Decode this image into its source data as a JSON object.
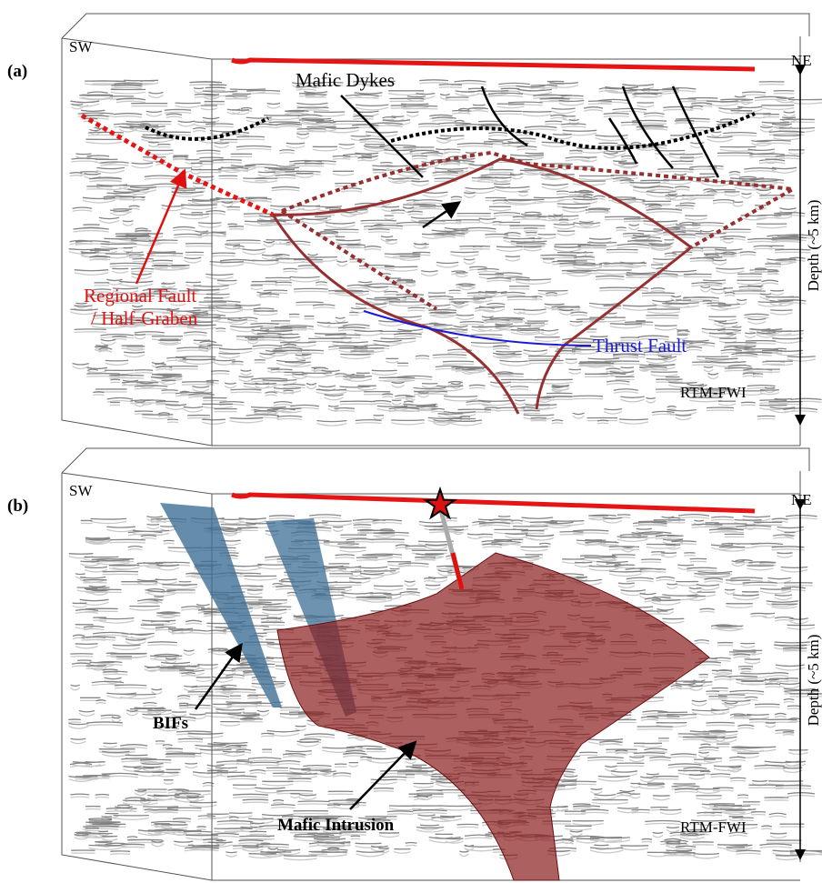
{
  "panels": [
    {
      "label": "(a)",
      "left_direction": "SW",
      "right_direction": "NE",
      "depth_label": "Depth (~5 km)",
      "method_label": "RTM-FWI",
      "annotations": [
        "Mafic Dykes",
        "Regional Fault",
        "/ Half-Graben",
        "Thrust Fault"
      ]
    },
    {
      "label": "(b)",
      "left_direction": "SW",
      "right_direction": "NE",
      "depth_label": "Depth (~5 km)",
      "method_label": "RTM-FWI",
      "annotations": [
        "BIFs",
        "Mafic Intrusion"
      ]
    }
  ]
}
